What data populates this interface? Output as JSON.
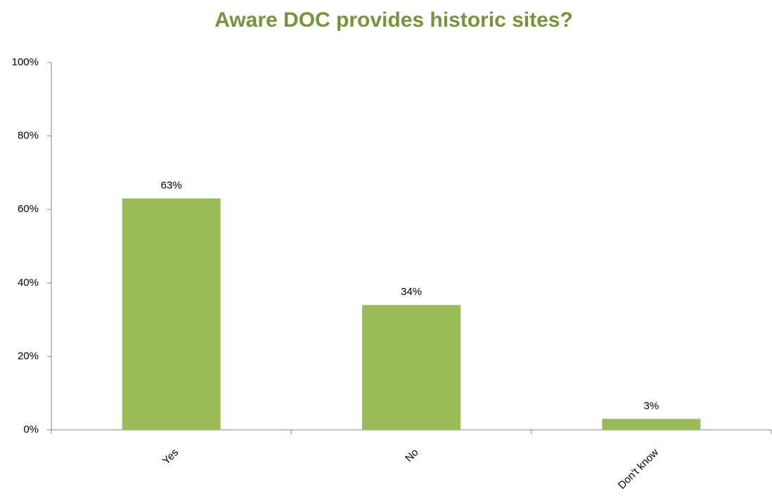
{
  "chart_data": {
    "type": "bar",
    "title": "Aware DOC provides historic sites?",
    "categories": [
      "Yes",
      "No",
      "Don't know"
    ],
    "values": [
      63,
      34,
      3
    ],
    "value_labels": [
      "63%",
      "34%",
      "3%"
    ],
    "color": "#9bbb59",
    "ylim": [
      0,
      100
    ],
    "yticks": [
      {
        "value": 0,
        "label": "0%"
      },
      {
        "value": 20,
        "label": "20%"
      },
      {
        "value": 40,
        "label": "40%"
      },
      {
        "value": 60,
        "label": "60%"
      },
      {
        "value": 80,
        "label": "80%"
      },
      {
        "value": 100,
        "label": "100%"
      }
    ],
    "grid": false
  }
}
